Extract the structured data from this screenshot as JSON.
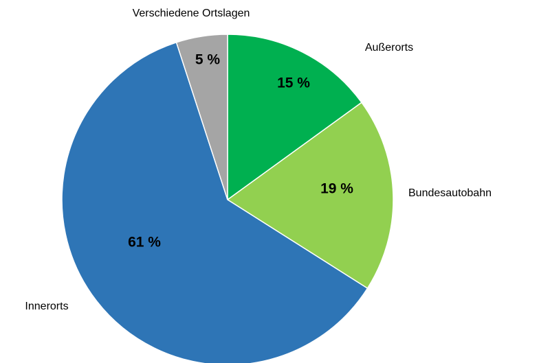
{
  "chart_data": {
    "type": "pie",
    "categories": [
      "Außerorts",
      "Bundesautobahn",
      "Innerorts",
      "Verschiedene Ortslagen"
    ],
    "values": [
      15,
      19,
      61,
      5
    ],
    "value_labels": [
      "15 %",
      "19 %",
      "61 %",
      "5 %"
    ],
    "colors": [
      "#00b050",
      "#92d050",
      "#2e75b6",
      "#a5a5a5"
    ]
  }
}
